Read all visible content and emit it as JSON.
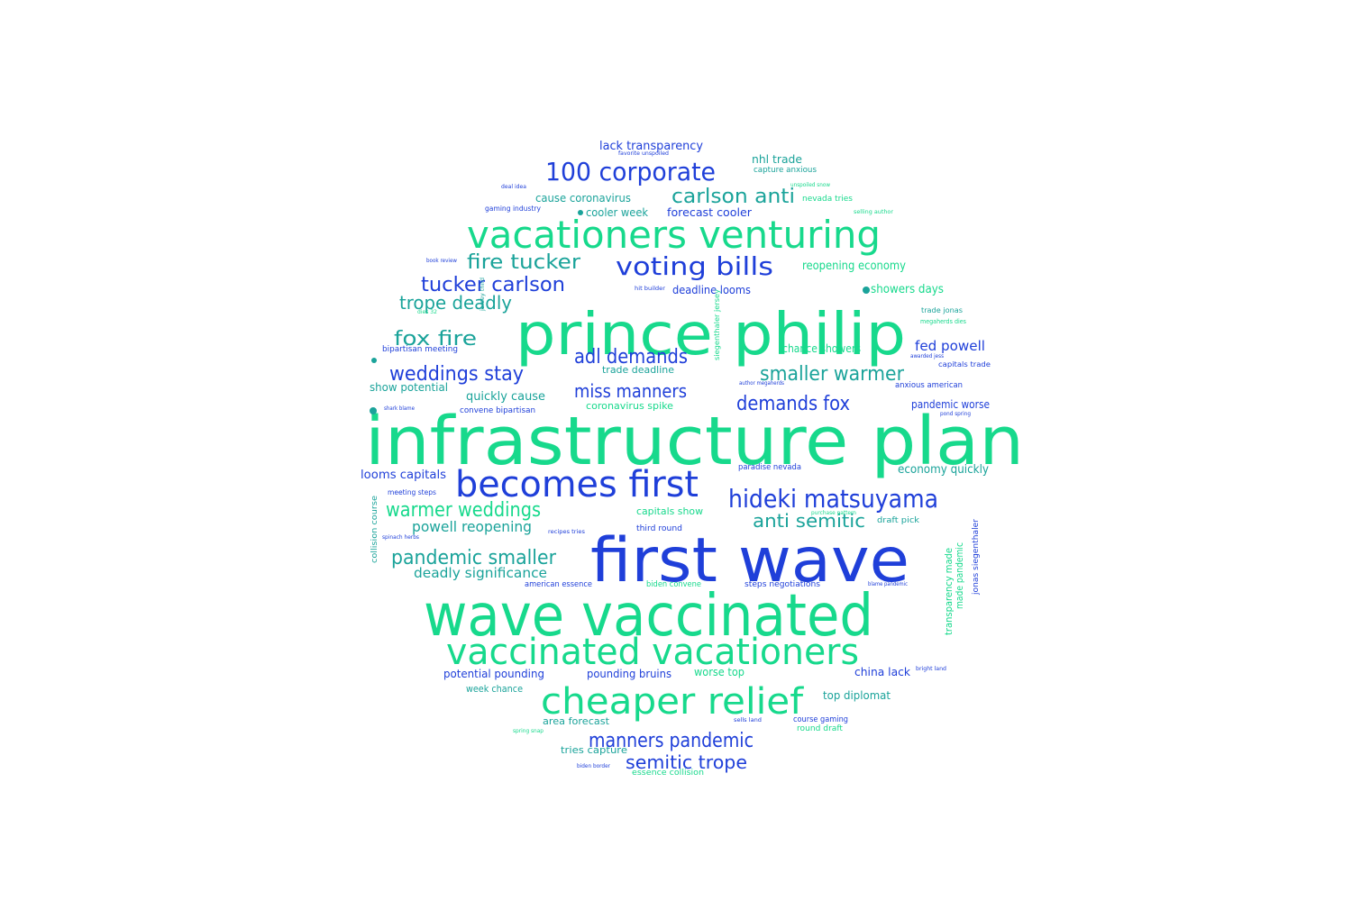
{
  "colors": {
    "blue": "#1f3fd9",
    "mid": "#1aa39a",
    "green": "#17d98c"
  },
  "words": [
    {
      "text": "infrastructure plan",
      "color": "green"
    },
    {
      "text": "first wave",
      "color": "blue"
    },
    {
      "text": "wave vaccinated",
      "color": "green"
    },
    {
      "text": "prince philip",
      "color": "green"
    },
    {
      "text": "vacationers venturing",
      "color": "green"
    },
    {
      "text": "vaccinated vacationers",
      "color": "green"
    },
    {
      "text": "cheaper relief",
      "color": "green"
    },
    {
      "text": "becomes first",
      "color": "blue"
    },
    {
      "text": "hideki matsuyama",
      "color": "blue"
    },
    {
      "text": "100 corporate",
      "color": "blue"
    },
    {
      "text": "voting bills",
      "color": "blue"
    },
    {
      "text": "carlson anti",
      "color": "mid"
    },
    {
      "text": "fire tucker",
      "color": "mid"
    },
    {
      "text": "tucker carlson",
      "color": "blue"
    },
    {
      "text": "trope deadly",
      "color": "mid"
    },
    {
      "text": "fox fire",
      "color": "mid"
    },
    {
      "text": "adl demands",
      "color": "blue"
    },
    {
      "text": "weddings stay",
      "color": "blue"
    },
    {
      "text": "smaller warmer",
      "color": "mid"
    },
    {
      "text": "miss manners",
      "color": "blue"
    },
    {
      "text": "demands fox",
      "color": "blue"
    },
    {
      "text": "warmer weddings",
      "color": "green"
    },
    {
      "text": "anti semitic",
      "color": "mid"
    },
    {
      "text": "powell reopening",
      "color": "mid"
    },
    {
      "text": "pandemic smaller",
      "color": "mid"
    },
    {
      "text": "deadly significance",
      "color": "mid"
    },
    {
      "text": "manners pandemic",
      "color": "blue"
    },
    {
      "text": "semitic trope",
      "color": "blue"
    },
    {
      "text": "lack transparency",
      "color": "blue"
    },
    {
      "text": "nhl trade",
      "color": "mid"
    },
    {
      "text": "capture anxious",
      "color": "mid"
    },
    {
      "text": "cause coronavirus",
      "color": "mid"
    },
    {
      "text": "cooler week",
      "color": "mid"
    },
    {
      "text": "forecast cooler",
      "color": "blue"
    },
    {
      "text": "nevada tries",
      "color": "green"
    },
    {
      "text": "gaming industry",
      "color": "blue"
    },
    {
      "text": "reopening economy",
      "color": "green"
    },
    {
      "text": "deadline looms",
      "color": "blue"
    },
    {
      "text": "showers days",
      "color": "green"
    },
    {
      "text": "fed powell",
      "color": "blue"
    },
    {
      "text": "chance showers",
      "color": "green"
    },
    {
      "text": "trade deadline",
      "color": "mid"
    },
    {
      "text": "bipartisan meeting",
      "color": "blue"
    },
    {
      "text": "show potential",
      "color": "mid"
    },
    {
      "text": "quickly cause",
      "color": "mid"
    },
    {
      "text": "convene bipartisan",
      "color": "blue"
    },
    {
      "text": "coronavirus spike",
      "color": "green"
    },
    {
      "text": "pandemic worse",
      "color": "blue"
    },
    {
      "text": "anxious american",
      "color": "blue"
    },
    {
      "text": "capitals trade",
      "color": "blue"
    },
    {
      "text": "looms capitals",
      "color": "blue"
    },
    {
      "text": "paradise nevada",
      "color": "blue"
    },
    {
      "text": "economy quickly",
      "color": "mid"
    },
    {
      "text": "meeting steps",
      "color": "blue"
    },
    {
      "text": "capitals show",
      "color": "green"
    },
    {
      "text": "third round",
      "color": "blue"
    },
    {
      "text": "draft pick",
      "color": "mid"
    },
    {
      "text": "collision course",
      "color": "mid"
    },
    {
      "text": "american essence",
      "color": "blue"
    },
    {
      "text": "biden convene",
      "color": "green"
    },
    {
      "text": "steps negotiations",
      "color": "blue"
    },
    {
      "text": "made pandemic",
      "color": "green"
    },
    {
      "text": "transparency made",
      "color": "green"
    },
    {
      "text": "jonas siegenthaler",
      "color": "blue"
    },
    {
      "text": "siegenthaler jersey",
      "color": "green"
    },
    {
      "text": "potential pounding",
      "color": "blue"
    },
    {
      "text": "pounding bruins",
      "color": "blue"
    },
    {
      "text": "worse top",
      "color": "green"
    },
    {
      "text": "china lack",
      "color": "blue"
    },
    {
      "text": "week chance",
      "color": "mid"
    },
    {
      "text": "top diplomat",
      "color": "mid"
    },
    {
      "text": "area forecast",
      "color": "mid"
    },
    {
      "text": "course gaming",
      "color": "blue"
    },
    {
      "text": "round draft",
      "color": "green"
    },
    {
      "text": "tries capture",
      "color": "mid"
    },
    {
      "text": "essence collision",
      "color": "green"
    },
    {
      "text": "trade jonas",
      "color": "mid"
    },
    {
      "text": "megaherds dies",
      "color": "green"
    },
    {
      "text": "book review",
      "color": "blue"
    },
    {
      "text": "selling author",
      "color": "green"
    },
    {
      "text": "favorite unspoiled",
      "color": "blue"
    },
    {
      "text": "deal idea",
      "color": "blue"
    },
    {
      "text": "bright land",
      "color": "blue"
    },
    {
      "text": "spring snap",
      "color": "green"
    },
    {
      "text": "biden border",
      "color": "blue"
    },
    {
      "text": "blame pandemic",
      "color": "blue"
    },
    {
      "text": "purchase pattern",
      "color": "green"
    },
    {
      "text": "spinach herbs",
      "color": "blue"
    },
    {
      "text": "shark blame",
      "color": "blue"
    },
    {
      "text": "jersey third",
      "color": "mid"
    },
    {
      "text": "sells land",
      "color": "blue"
    },
    {
      "text": "unspoiled snow",
      "color": "green"
    },
    {
      "text": "dies 32",
      "color": "green"
    },
    {
      "text": "awarded jess",
      "color": "blue"
    },
    {
      "text": "hit builder",
      "color": "blue"
    },
    {
      "text": "recipes tries",
      "color": "blue"
    },
    {
      "text": "pond spring",
      "color": "blue"
    },
    {
      "text": "author megaherds",
      "color": "blue"
    }
  ]
}
